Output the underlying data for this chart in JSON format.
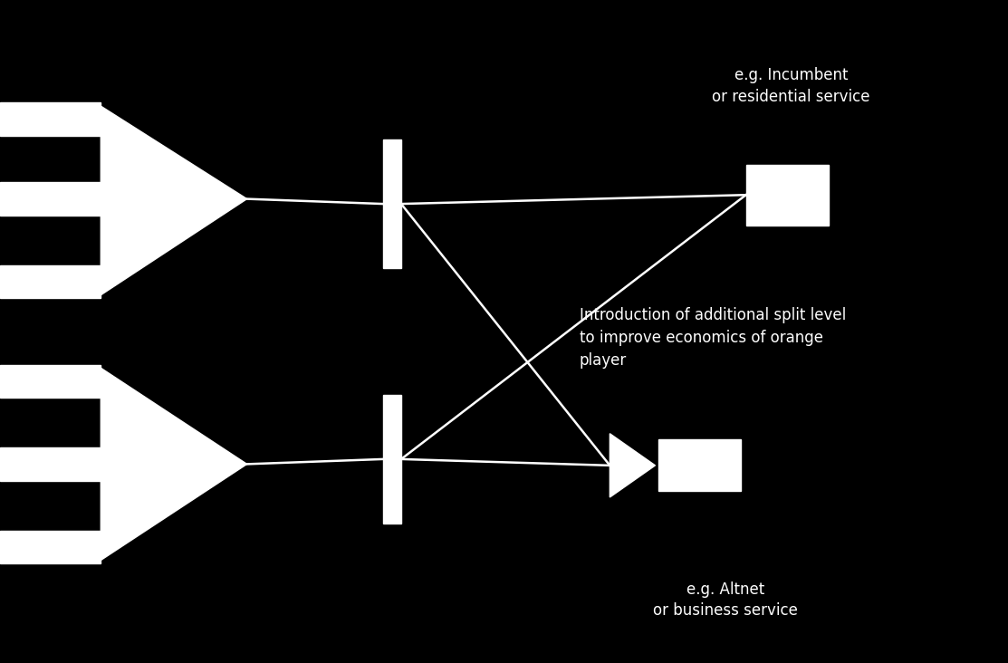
{
  "bg_color": "#000000",
  "fg_color": "#ffffff",
  "fig_width": 11.13,
  "fig_height": 7.32,
  "text_incumbent": "e.g. Incumbent\nor residential service",
  "text_altnet": "e.g. Altnet\nor business service",
  "text_intro": "Introduction of additional split level\nto improve economics of orange\nplayer",
  "lw": 1.8
}
